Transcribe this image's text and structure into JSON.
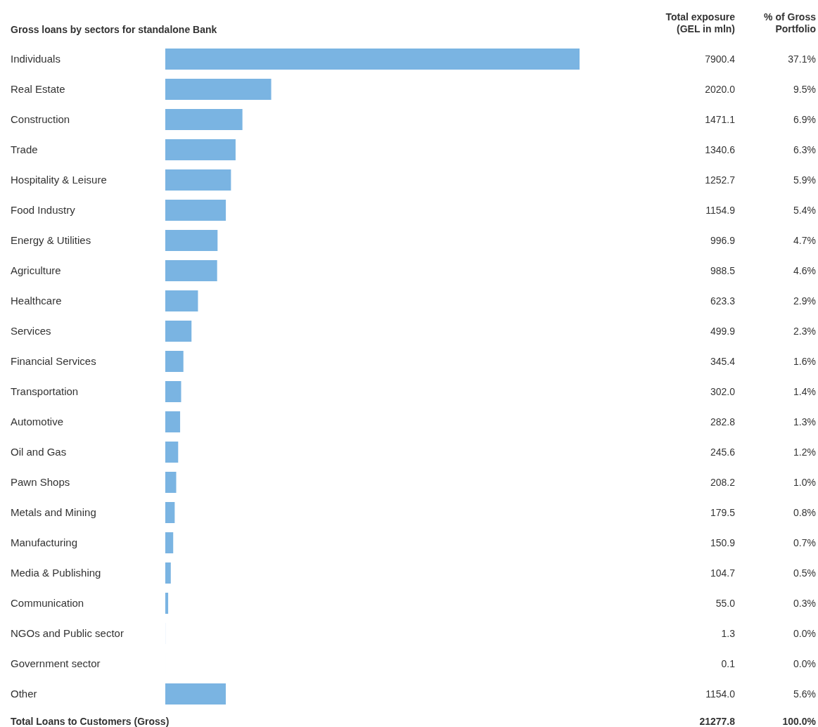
{
  "chart_data": {
    "type": "bar",
    "orientation": "horizontal",
    "title": "Gross loans by sectors for standalone Bank",
    "categories": [
      "Individuals",
      "Real Estate",
      "Construction",
      "Trade",
      "Hospitality & Leisure",
      "Food Industry",
      "Energy & Utilities",
      "Agriculture",
      "Healthcare",
      "Services",
      "Financial Services",
      "Transportation",
      "Automotive",
      "Oil and Gas",
      "Pawn Shops",
      "Metals and Mining",
      "Manufacturing",
      "Media & Publishing",
      "Communication",
      "NGOs and Public sector",
      "Government sector",
      "Other"
    ],
    "values": [
      7900.4,
      2020.0,
      1471.1,
      1340.6,
      1252.7,
      1154.9,
      996.9,
      988.5,
      623.3,
      499.9,
      345.4,
      302.0,
      282.8,
      245.6,
      208.2,
      179.5,
      150.9,
      104.7,
      55.0,
      1.3,
      0.1,
      1154.0
    ],
    "value_labels": [
      "7900.4",
      "2020.0",
      "1471.1",
      "1340.6",
      "1252.7",
      "1154.9",
      "996.9",
      "988.5",
      "623.3",
      "499.9",
      "345.4",
      "302.0",
      "282.8",
      "245.6",
      "208.2",
      "179.5",
      "150.9",
      "104.7",
      "55.0",
      "1.3",
      "0.1",
      "1154.0"
    ],
    "color": "#7ab4e2",
    "annotations": [
      "Total exposure (GEL in mln)",
      "% of Gross Portfolio",
      "37.1%",
      "9.5%",
      "6.9%",
      "6.3%",
      "5.9%",
      "5.4%",
      "4.7%",
      "4.6%",
      "2.9%",
      "2.3%",
      "1.6%",
      "1.4%",
      "1.3%",
      "1.2%",
      "1.0%",
      "0.8%",
      "0.7%",
      "0.5%",
      "0.3%",
      "0.0%",
      "0.0%",
      "5.6%",
      "Total Loans to Customers (Gross)",
      "21277.8",
      "100.0%"
    ]
  }
}
